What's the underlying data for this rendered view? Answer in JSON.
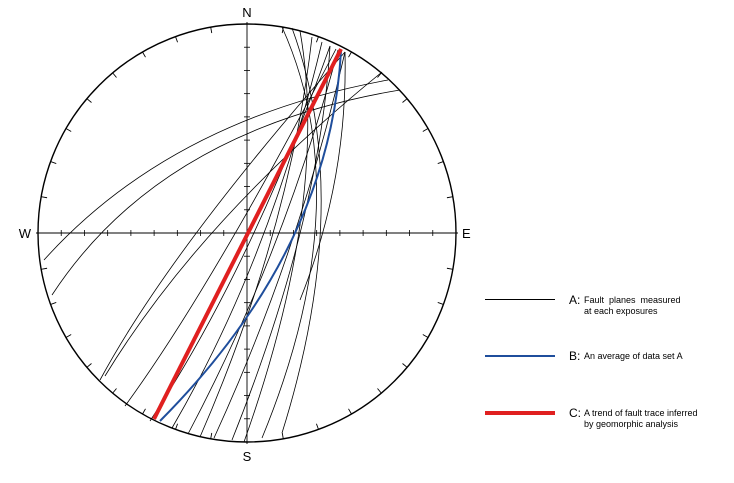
{
  "compass": {
    "north": "N",
    "south": "S",
    "east": "E",
    "west": "W"
  },
  "legend": {
    "a": {
      "letter": "A:",
      "text": "Fault  planes  measured\nat each exposures",
      "color": "#000000"
    },
    "b": {
      "letter": "B:",
      "text": "An average of data set A",
      "color": "#1f4e9c"
    },
    "c": {
      "letter": "C:",
      "text": "A trend of fault trace inferred\nby geomorphic analysis",
      "color": "#e02020"
    }
  },
  "colors": {
    "planes": "#000000",
    "average": "#1f4e9c",
    "trend": "#e02020"
  }
}
